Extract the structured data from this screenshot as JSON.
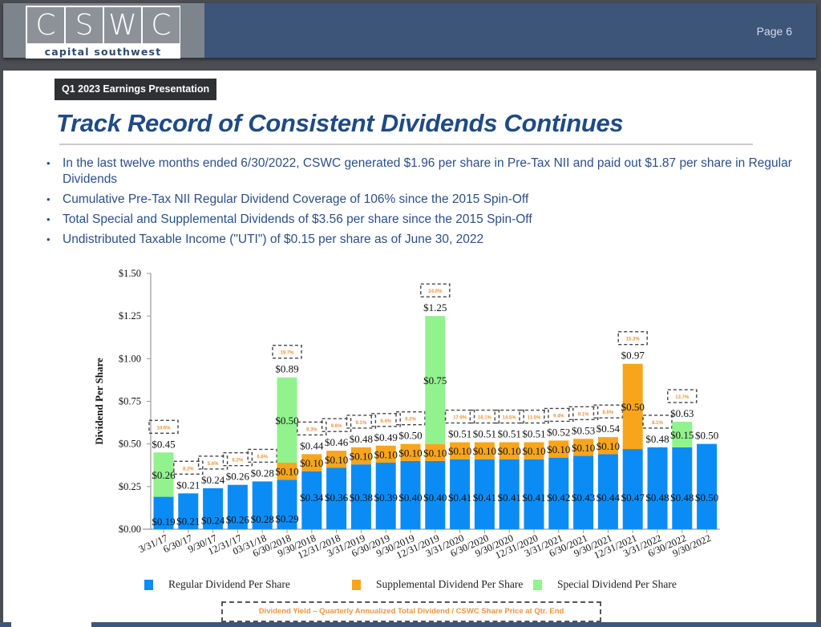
{
  "header": {
    "logo_letters": [
      "C",
      "S",
      "W",
      "C"
    ],
    "logo_subtitle": "capital southwest",
    "page_label": "Page 6"
  },
  "slide": {
    "presentation_tag": "Q1 2023 Earnings Presentation",
    "title": "Track Record of Consistent Dividends Continues",
    "bullets": [
      "In the last twelve months ended 6/30/2022, CSWC generated $1.96 per share in Pre-Tax NII and paid out $1.87 per share in Regular Dividends",
      "Cumulative Pre-Tax NII Regular Dividend Coverage of 106% since the 2015 Spin-Off",
      "Total Special and Supplemental Dividends of $3.56 per share since the 2015 Spin-Off",
      "Undistributed Taxable Income (\"UTI\") of $0.15 per share as of June 30, 2022"
    ],
    "yield_note": "Dividend Yield – Quarterly Annualized Total Dividend / CSWC Share Price at Qtr. End"
  },
  "colors": {
    "regular": "#0b8cf5",
    "supplemental": "#f8a51c",
    "special": "#92f28d",
    "yield_text": "#f0943c",
    "title": "#1f4a86",
    "header": "#3d5579"
  },
  "chart_data": {
    "type": "bar",
    "stacked": true,
    "title": "",
    "xlabel": "",
    "ylabel": "Dividend Per Share",
    "ylim": [
      0,
      1.5
    ],
    "yticks": [
      "$0.00",
      "$0.25",
      "$0.50",
      "$0.75",
      "$1.00",
      "$1.25",
      "$1.50"
    ],
    "ytick_values": [
      0,
      0.25,
      0.5,
      0.75,
      1.0,
      1.25,
      1.5
    ],
    "grid": false,
    "legend_position": "bottom",
    "categories": [
      "3/31/17",
      "6/30/17",
      "9/30/17",
      "12/31/17",
      "03/31/18",
      "6/30/2018",
      "9/30/2018",
      "12/31/2018",
      "3/31/2019",
      "6/30/2019",
      "9/30/2019",
      "12/31/2019",
      "3/31/2020",
      "6/30/2020",
      "9/30/2020",
      "12/31/2020",
      "3/31/2021",
      "6/30/2021",
      "9/30/2021",
      "12/31/2021",
      "3/31/2022",
      "6/30/2022",
      "9/30/2022"
    ],
    "series": [
      {
        "name": "Regular Dividend Per Share",
        "key": "regular",
        "values": [
          0.19,
          0.21,
          0.24,
          0.26,
          0.28,
          0.29,
          0.34,
          0.36,
          0.38,
          0.39,
          0.4,
          0.4,
          0.41,
          0.41,
          0.41,
          0.41,
          0.42,
          0.43,
          0.44,
          0.47,
          0.48,
          0.48,
          0.5
        ]
      },
      {
        "name": "Supplemental Dividend Per Share",
        "key": "supplemental",
        "values": [
          0,
          0,
          0,
          0,
          0,
          0.1,
          0.1,
          0.1,
          0.1,
          0.1,
          0.1,
          0.1,
          0.1,
          0.1,
          0.1,
          0.1,
          0.1,
          0.1,
          0.1,
          0.5,
          0,
          0,
          0
        ]
      },
      {
        "name": "Special Dividend Per Share",
        "key": "special",
        "values": [
          0.26,
          0,
          0,
          0,
          0,
          0.5,
          0,
          0,
          0,
          0,
          0,
          0.75,
          0,
          0,
          0,
          0,
          0,
          0,
          0,
          0,
          0,
          0.15,
          0
        ]
      }
    ],
    "totals": [
      0.45,
      0.21,
      0.24,
      0.26,
      0.28,
      0.89,
      0.44,
      0.46,
      0.48,
      0.49,
      0.5,
      1.25,
      0.51,
      0.51,
      0.51,
      0.51,
      0.52,
      0.53,
      0.54,
      0.97,
      0.48,
      0.63,
      0.5
    ],
    "dividend_yield": [
      "10.6%",
      "8.2%",
      "5.6%",
      "6.2%",
      "6.6%",
      "19.7%",
      "9.3%",
      "9.6%",
      "9.1%",
      "9.4%",
      "9.2%",
      "24.0%",
      "17.9%",
      "16.1%",
      "14.5%",
      "11.5%",
      "9.4%",
      "9.1%",
      "8.6%",
      "15.3%",
      "8.1%",
      "13.7%",
      null
    ]
  }
}
